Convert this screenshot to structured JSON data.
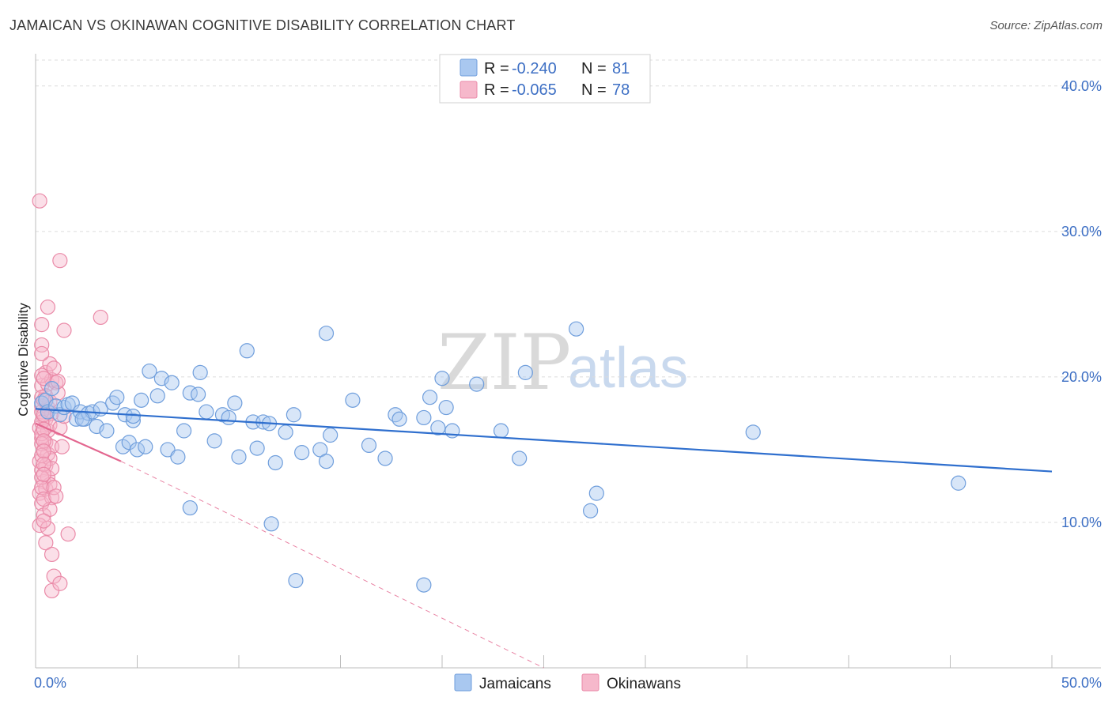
{
  "header": {
    "title": "JAMAICAN VS OKINAWAN COGNITIVE DISABILITY CORRELATION CHART",
    "source": "Source: ZipAtlas.com"
  },
  "watermark": {
    "zip": "ZIP",
    "atlas": "atlas"
  },
  "legend": {
    "rows": [
      {
        "r_label": "R = ",
        "r_value": "-0.240",
        "n_label": "N = ",
        "n_value": "81",
        "color": "#a9c8f0"
      },
      {
        "r_label": "R = ",
        "r_value": "-0.065",
        "n_label": "N = ",
        "n_value": "78",
        "color": "#f6b8cb"
      }
    ]
  },
  "bottom_legend": {
    "jamaicans": "Jamaicans",
    "okinawans": "Okinawans"
  },
  "colors": {
    "jamaicans_fill": "#a9c8f0",
    "jamaicans_stroke": "#6f9edc",
    "jamaicans_line": "#2f6fce",
    "okinawans_fill": "#f6b8cb",
    "okinawans_stroke": "#ea8aa8",
    "okinawans_line": "#e3668f",
    "grid": "#dcdcdc",
    "axis_text": "#3d6fc4"
  },
  "chart_data": {
    "type": "scatter",
    "title": "JAMAICAN VS OKINAWAN COGNITIVE DISABILITY CORRELATION CHART",
    "xlabel": "",
    "ylabel": "Cognitive Disability",
    "xlim": [
      0,
      50
    ],
    "ylim": [
      0,
      42
    ],
    "x_tick_labels": [
      "0.0%",
      "50.0%"
    ],
    "y_ticks": [
      10,
      20,
      30,
      40
    ],
    "y_tick_labels": [
      "10.0%",
      "20.0%",
      "30.0%",
      "40.0%"
    ],
    "series": [
      {
        "name": "Jamaicans",
        "R": -0.24,
        "N": 81,
        "trend": {
          "x": [
            0,
            50
          ],
          "y": [
            17.8,
            13.5
          ],
          "dashed_extension": false
        },
        "points": [
          [
            0.3,
            18.2
          ],
          [
            0.5,
            18.4
          ],
          [
            0.6,
            17.6
          ],
          [
            0.8,
            19.2
          ],
          [
            1.0,
            18.0
          ],
          [
            1.2,
            17.4
          ],
          [
            1.4,
            17.9
          ],
          [
            1.6,
            18.1
          ],
          [
            1.8,
            18.2
          ],
          [
            2.0,
            17.1
          ],
          [
            2.2,
            17.6
          ],
          [
            2.4,
            17.1
          ],
          [
            2.6,
            17.5
          ],
          [
            2.8,
            17.6
          ],
          [
            3.0,
            16.6
          ],
          [
            3.2,
            17.8
          ],
          [
            3.5,
            16.3
          ],
          [
            3.8,
            18.2
          ],
          [
            4.0,
            18.6
          ],
          [
            4.3,
            15.2
          ],
          [
            4.4,
            17.4
          ],
          [
            4.6,
            15.5
          ],
          [
            4.8,
            17.0
          ],
          [
            5.0,
            15.0
          ],
          [
            5.2,
            18.4
          ],
          [
            5.4,
            15.2
          ],
          [
            5.6,
            20.4
          ],
          [
            6.0,
            18.7
          ],
          [
            6.2,
            19.9
          ],
          [
            6.5,
            15.0
          ],
          [
            6.7,
            19.6
          ],
          [
            7.0,
            14.5
          ],
          [
            7.3,
            16.3
          ],
          [
            7.6,
            18.9
          ],
          [
            8.0,
            18.8
          ],
          [
            8.1,
            20.3
          ],
          [
            8.4,
            17.6
          ],
          [
            8.8,
            15.6
          ],
          [
            9.2,
            17.4
          ],
          [
            9.5,
            17.2
          ],
          [
            9.8,
            18.2
          ],
          [
            10.0,
            14.5
          ],
          [
            10.4,
            21.8
          ],
          [
            10.7,
            16.9
          ],
          [
            10.9,
            15.1
          ],
          [
            11.2,
            16.9
          ],
          [
            11.5,
            16.8
          ],
          [
            11.8,
            14.1
          ],
          [
            12.3,
            16.2
          ],
          [
            12.7,
            17.4
          ],
          [
            13.1,
            14.8
          ],
          [
            14.0,
            15.0
          ],
          [
            14.3,
            14.2
          ],
          [
            14.5,
            16.0
          ],
          [
            15.6,
            18.4
          ],
          [
            16.4,
            15.3
          ],
          [
            17.2,
            14.4
          ],
          [
            17.7,
            17.4
          ],
          [
            17.9,
            17.1
          ],
          [
            19.1,
            17.2
          ],
          [
            19.4,
            18.6
          ],
          [
            19.8,
            16.5
          ],
          [
            20.0,
            19.9
          ],
          [
            20.2,
            17.9
          ],
          [
            20.5,
            16.3
          ],
          [
            21.7,
            19.5
          ],
          [
            22.9,
            16.3
          ],
          [
            23.8,
            14.4
          ],
          [
            24.1,
            20.3
          ],
          [
            26.6,
            23.3
          ],
          [
            27.3,
            10.8
          ],
          [
            27.6,
            12.0
          ],
          [
            35.3,
            16.2
          ],
          [
            45.4,
            12.7
          ],
          [
            7.6,
            11.0
          ],
          [
            11.6,
            9.9
          ],
          [
            12.8,
            6.0
          ],
          [
            19.1,
            5.7
          ],
          [
            14.3,
            23.0
          ],
          [
            4.8,
            17.3
          ],
          [
            2.3,
            17.1
          ]
        ]
      },
      {
        "name": "Okinawans",
        "R": -0.065,
        "N": 78,
        "trend": {
          "x": [
            0,
            4.2
          ],
          "y": [
            16.8,
            14.2
          ],
          "dashed_extension": true,
          "dashed_to": {
            "x": 25,
            "y": 0
          }
        },
        "points": [
          [
            0.2,
            32.1
          ],
          [
            0.3,
            19.4
          ],
          [
            0.3,
            18.0
          ],
          [
            0.4,
            17.2
          ],
          [
            0.2,
            16.5
          ],
          [
            0.3,
            15.8
          ],
          [
            0.4,
            15.0
          ],
          [
            0.2,
            14.2
          ],
          [
            0.3,
            13.6
          ],
          [
            0.4,
            12.8
          ],
          [
            0.2,
            12.0
          ],
          [
            0.3,
            11.3
          ],
          [
            0.4,
            10.5
          ],
          [
            0.2,
            9.8
          ],
          [
            0.5,
            20.3
          ],
          [
            0.6,
            19.5
          ],
          [
            0.5,
            18.7
          ],
          [
            0.6,
            17.9
          ],
          [
            0.5,
            17.1
          ],
          [
            0.6,
            16.3
          ],
          [
            0.5,
            15.5
          ],
          [
            0.6,
            14.7
          ],
          [
            0.5,
            13.9
          ],
          [
            0.6,
            13.1
          ],
          [
            0.5,
            12.3
          ],
          [
            0.6,
            24.8
          ],
          [
            0.7,
            20.9
          ],
          [
            0.8,
            19.8
          ],
          [
            0.7,
            18.3
          ],
          [
            0.8,
            17.5
          ],
          [
            0.7,
            16.7
          ],
          [
            0.8,
            15.2
          ],
          [
            0.7,
            14.4
          ],
          [
            0.8,
            13.7
          ],
          [
            0.7,
            12.6
          ],
          [
            0.8,
            11.7
          ],
          [
            0.7,
            10.9
          ],
          [
            0.6,
            9.6
          ],
          [
            0.5,
            8.6
          ],
          [
            0.8,
            7.8
          ],
          [
            0.9,
            6.3
          ],
          [
            0.8,
            5.3
          ],
          [
            1.2,
            5.8
          ],
          [
            1.0,
            19.6
          ],
          [
            1.1,
            18.9
          ],
          [
            1.2,
            16.5
          ],
          [
            1.3,
            15.2
          ],
          [
            1.4,
            17.3
          ],
          [
            1.6,
            9.2
          ],
          [
            1.2,
            28.0
          ],
          [
            1.4,
            23.2
          ],
          [
            3.2,
            24.1
          ],
          [
            0.3,
            22.2
          ],
          [
            0.3,
            20.1
          ],
          [
            0.3,
            18.6
          ],
          [
            0.3,
            17.6
          ],
          [
            0.3,
            16.9
          ],
          [
            0.3,
            16.1
          ],
          [
            0.3,
            15.4
          ],
          [
            0.3,
            14.6
          ],
          [
            0.3,
            13.1
          ],
          [
            0.3,
            12.4
          ],
          [
            0.4,
            11.6
          ],
          [
            0.4,
            10.1
          ],
          [
            0.3,
            23.6
          ],
          [
            0.3,
            21.6
          ],
          [
            0.4,
            19.9
          ],
          [
            0.4,
            18.4
          ],
          [
            0.4,
            17.4
          ],
          [
            0.4,
            16.4
          ],
          [
            0.4,
            15.6
          ],
          [
            0.4,
            14.9
          ],
          [
            0.4,
            14.0
          ],
          [
            0.4,
            13.3
          ],
          [
            0.9,
            12.4
          ],
          [
            1.0,
            11.8
          ],
          [
            0.9,
            20.6
          ],
          [
            1.1,
            19.7
          ]
        ]
      }
    ]
  }
}
